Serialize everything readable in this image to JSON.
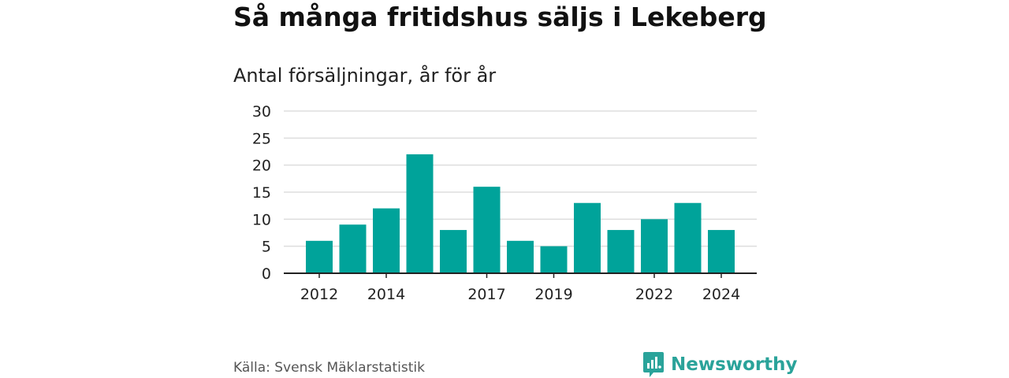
{
  "header": {
    "title": "Så många fritidshus säljs i Lekeberg",
    "subtitle": "Antal försäljningar, år för år"
  },
  "footer": {
    "source": "Källa: Svensk Mäklarstatistik",
    "brand": "Newsworthy",
    "brand_icon": "newsworthy-logo-icon"
  },
  "colors": {
    "bar": "#00a39a",
    "grid": "#dddddd",
    "axis": "#222222",
    "brand": "#2aa39a"
  },
  "chart_data": {
    "type": "bar",
    "title": "Så många fritidshus säljs i Lekeberg",
    "subtitle": "Antal försäljningar, år för år",
    "categories": [
      "2012",
      "2013",
      "2014",
      "2015",
      "2016",
      "2017",
      "2018",
      "2019",
      "2020",
      "2021",
      "2022",
      "2023",
      "2024"
    ],
    "values": [
      6,
      9,
      12,
      22,
      8,
      16,
      6,
      5,
      13,
      8,
      10,
      13,
      8
    ],
    "x_tick_labels": [
      "2012",
      "2014",
      "2017",
      "2019",
      "2022",
      "2024"
    ],
    "y_ticks": [
      0,
      5,
      10,
      15,
      20,
      25,
      30
    ],
    "ylim": [
      0,
      30
    ],
    "xlabel": "",
    "ylabel": "",
    "grid": true,
    "legend": "none"
  }
}
